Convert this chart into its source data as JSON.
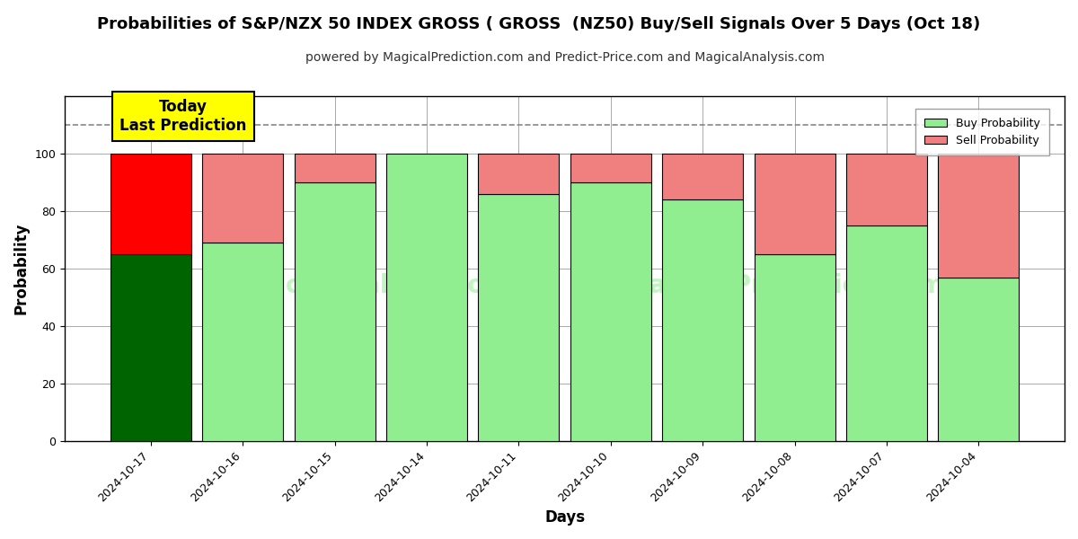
{
  "title": "Probabilities of S&P/NZX 50 INDEX GROSS ( GROSS  (NZ50) Buy/Sell Signals Over 5 Days (Oct 18)",
  "subtitle": "powered by MagicalPrediction.com and Predict-Price.com and MagicalAnalysis.com",
  "xlabel": "Days",
  "ylabel": "Probability",
  "categories": [
    "2024-10-17",
    "2024-10-16",
    "2024-10-15",
    "2024-10-14",
    "2024-10-11",
    "2024-10-10",
    "2024-10-09",
    "2024-10-08",
    "2024-10-07",
    "2024-10-04"
  ],
  "buy_values": [
    65,
    69,
    90,
    100,
    86,
    90,
    84,
    65,
    75,
    57
  ],
  "sell_values": [
    35,
    31,
    10,
    0,
    14,
    10,
    16,
    35,
    25,
    43
  ],
  "buy_color_first": "#006400",
  "sell_color_first": "#FF0000",
  "buy_color_rest": "#90EE90",
  "sell_color_rest": "#F08080",
  "bar_edge_color": "#000000",
  "ylim": [
    0,
    120
  ],
  "yticks": [
    0,
    20,
    40,
    60,
    80,
    100
  ],
  "dashed_line_y": 110,
  "watermark_left": "MagicalAnalysis.com",
  "watermark_right": "MagicalPrediction.com",
  "annotation_text": "Today\nLast Prediction",
  "annotation_bg": "#FFFF00",
  "legend_buy_label": "Buy Probability",
  "legend_sell_label": "Sell Probability",
  "background_color": "#FFFFFF",
  "grid_color": "#AAAAAA",
  "title_fontsize": 13,
  "subtitle_fontsize": 10,
  "axis_label_fontsize": 12,
  "tick_fontsize": 9,
  "bar_width": 0.88
}
